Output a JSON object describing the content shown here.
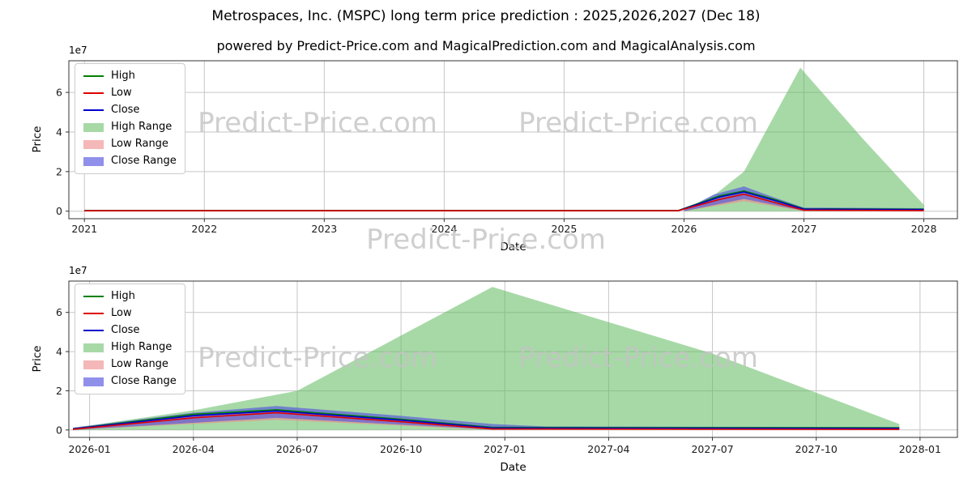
{
  "page": {
    "title": "Metrospaces, Inc. (MSPC) long term price prediction : 2025,2026,2027 (Dec 18)",
    "subtitle": "powered by Predict-Price.com and MagicalPrediction.com and MagicalAnalysis.com",
    "watermark": "Predict-Price.com"
  },
  "colors": {
    "high_line": "#008000",
    "low_line": "#dd0000",
    "close_line": "#0000cc",
    "high_range_fill": "#5fba5f",
    "low_range_fill": "#ee8888",
    "close_range_fill": "#5555e0",
    "grid": "#c6c6c6",
    "watermark_gray": "#c3c3c3"
  },
  "chart_data": [
    {
      "type": "line",
      "title": "",
      "xlabel": "Date",
      "ylabel": "Price",
      "offset_label": "1e7",
      "y_unit_multiplier": 10000000,
      "x_range": [
        2020.87,
        2028.28
      ],
      "y_range": [
        -0.38,
        7.6
      ],
      "x_ticks": [
        {
          "v": 2021,
          "label": "2021"
        },
        {
          "v": 2022,
          "label": "2022"
        },
        {
          "v": 2023,
          "label": "2023"
        },
        {
          "v": 2024,
          "label": "2024"
        },
        {
          "v": 2025,
          "label": "2025"
        },
        {
          "v": 2026,
          "label": "2026"
        },
        {
          "v": 2027,
          "label": "2027"
        },
        {
          "v": 2028,
          "label": "2028"
        }
      ],
      "y_ticks": [
        {
          "v": 0,
          "label": "0"
        },
        {
          "v": 2,
          "label": "2"
        },
        {
          "v": 4,
          "label": "4"
        },
        {
          "v": 6,
          "label": "6"
        }
      ],
      "fills": [
        {
          "name": "High Range",
          "color": "#5fba5f",
          "alpha": 0.55,
          "upper": [
            [
              2026.0,
              0.05
            ],
            [
              2026.25,
              0.8
            ],
            [
              2026.5,
              2.0
            ],
            [
              2026.97,
              7.25
            ],
            [
              2027.5,
              3.6
            ],
            [
              2028.0,
              0.32
            ]
          ],
          "lower": [
            [
              2026.0,
              0.0
            ],
            [
              2028.0,
              0.0
            ]
          ]
        },
        {
          "name": "Low Range",
          "color": "#ee8888",
          "alpha": 0.6,
          "upper": [
            [
              2026.0,
              0.04
            ],
            [
              2026.3,
              0.65
            ],
            [
              2026.5,
              0.9
            ],
            [
              2026.75,
              0.5
            ],
            [
              2027.0,
              0.08
            ],
            [
              2028.0,
              0.06
            ]
          ],
          "lower": [
            [
              2026.0,
              0.0
            ],
            [
              2026.5,
              0.5
            ],
            [
              2027.0,
              0.0
            ],
            [
              2028.0,
              0.0
            ]
          ]
        },
        {
          "name": "Close Range",
          "color": "#5555e0",
          "alpha": 0.65,
          "upper": [
            [
              2026.0,
              0.06
            ],
            [
              2026.25,
              0.85
            ],
            [
              2026.5,
              1.25
            ],
            [
              2026.75,
              0.7
            ],
            [
              2027.0,
              0.18
            ],
            [
              2028.0,
              0.15
            ]
          ],
          "lower": [
            [
              2026.0,
              0.0
            ],
            [
              2026.5,
              0.62
            ],
            [
              2027.0,
              0.02
            ],
            [
              2028.0,
              0.02
            ]
          ]
        }
      ],
      "lines": [
        {
          "name": "High",
          "color": "#008000",
          "points": [
            [
              2021.0,
              0.03
            ],
            [
              2025.95,
              0.03
            ],
            [
              2026.3,
              0.78
            ],
            [
              2026.5,
              1.02
            ],
            [
              2026.75,
              0.6
            ],
            [
              2027.0,
              0.12
            ],
            [
              2028.0,
              0.1
            ]
          ]
        },
        {
          "name": "Close",
          "color": "#0000cc",
          "points": [
            [
              2021.0,
              0.02
            ],
            [
              2025.95,
              0.02
            ],
            [
              2026.3,
              0.72
            ],
            [
              2026.5,
              0.97
            ],
            [
              2026.75,
              0.55
            ],
            [
              2027.0,
              0.1
            ],
            [
              2028.0,
              0.08
            ]
          ]
        },
        {
          "name": "Low",
          "color": "#dd0000",
          "points": [
            [
              2021.0,
              0.02
            ],
            [
              2025.95,
              0.02
            ],
            [
              2026.3,
              0.6
            ],
            [
              2026.5,
              0.86
            ],
            [
              2026.75,
              0.45
            ],
            [
              2027.0,
              0.05
            ],
            [
              2028.0,
              0.03
            ]
          ]
        }
      ],
      "legend": [
        {
          "label": "High",
          "type": "line",
          "color": "#008000",
          "alpha": 1
        },
        {
          "label": "Low",
          "type": "line",
          "color": "#dd0000",
          "alpha": 1
        },
        {
          "label": "Close",
          "type": "line",
          "color": "#0000cc",
          "alpha": 1
        },
        {
          "label": "High Range",
          "type": "patch",
          "color": "#5fba5f",
          "alpha": 0.55
        },
        {
          "label": "Low Range",
          "type": "patch",
          "color": "#ee8888",
          "alpha": 0.6
        },
        {
          "label": "Close Range",
          "type": "patch",
          "color": "#5555e0",
          "alpha": 0.65
        }
      ]
    },
    {
      "type": "line",
      "title": "",
      "xlabel": "Date",
      "ylabel": "Price",
      "offset_label": "1e7",
      "y_unit_multiplier": 10000000,
      "x_range": [
        2025.95,
        2028.09
      ],
      "y_range": [
        -0.38,
        7.6
      ],
      "x_ticks": [
        {
          "v": 2026.0,
          "label": "2026-01"
        },
        {
          "v": 2026.25,
          "label": "2026-04"
        },
        {
          "v": 2026.5,
          "label": "2026-07"
        },
        {
          "v": 2026.75,
          "label": "2026-10"
        },
        {
          "v": 2027.0,
          "label": "2027-01"
        },
        {
          "v": 2027.25,
          "label": "2027-04"
        },
        {
          "v": 2027.5,
          "label": "2027-07"
        },
        {
          "v": 2027.75,
          "label": "2027-10"
        },
        {
          "v": 2028.0,
          "label": "2028-01"
        }
      ],
      "y_ticks": [
        {
          "v": 0,
          "label": "0"
        },
        {
          "v": 2,
          "label": "2"
        },
        {
          "v": 4,
          "label": "4"
        },
        {
          "v": 6,
          "label": "6"
        }
      ],
      "fills": [
        {
          "name": "High Range",
          "color": "#5fba5f",
          "alpha": 0.55,
          "upper": [
            [
              2025.96,
              0.1
            ],
            [
              2026.25,
              1.0
            ],
            [
              2026.5,
              2.0
            ],
            [
              2026.97,
              7.3
            ],
            [
              2027.5,
              3.9
            ],
            [
              2027.95,
              0.3
            ]
          ],
          "lower": [
            [
              2025.96,
              0.0
            ],
            [
              2027.95,
              0.0
            ]
          ]
        },
        {
          "name": "Low Range",
          "color": "#ee8888",
          "alpha": 0.6,
          "upper": [
            [
              2025.96,
              0.06
            ],
            [
              2026.25,
              0.72
            ],
            [
              2026.45,
              0.95
            ],
            [
              2026.75,
              0.5
            ],
            [
              2026.97,
              0.12
            ],
            [
              2027.95,
              0.06
            ]
          ],
          "lower": [
            [
              2025.96,
              0.0
            ],
            [
              2026.45,
              0.52
            ],
            [
              2026.97,
              0.0
            ],
            [
              2027.95,
              0.0
            ]
          ]
        },
        {
          "name": "Close Range",
          "color": "#5555e0",
          "alpha": 0.65,
          "upper": [
            [
              2025.96,
              0.12
            ],
            [
              2026.25,
              0.88
            ],
            [
              2026.45,
              1.22
            ],
            [
              2026.75,
              0.72
            ],
            [
              2026.97,
              0.3
            ],
            [
              2027.1,
              0.18
            ],
            [
              2027.95,
              0.15
            ]
          ],
          "lower": [
            [
              2025.96,
              0.0
            ],
            [
              2026.45,
              0.62
            ],
            [
              2026.97,
              0.02
            ],
            [
              2027.95,
              0.02
            ]
          ]
        }
      ],
      "lines": [
        {
          "name": "High",
          "color": "#008000",
          "points": [
            [
              2025.96,
              0.06
            ],
            [
              2026.25,
              0.8
            ],
            [
              2026.45,
              1.03
            ],
            [
              2026.75,
              0.55
            ],
            [
              2026.97,
              0.13
            ],
            [
              2027.95,
              0.11
            ]
          ]
        },
        {
          "name": "Close",
          "color": "#0000cc",
          "points": [
            [
              2025.96,
              0.05
            ],
            [
              2026.25,
              0.73
            ],
            [
              2026.45,
              0.97
            ],
            [
              2026.75,
              0.5
            ],
            [
              2026.97,
              0.1
            ],
            [
              2027.95,
              0.08
            ]
          ]
        },
        {
          "name": "Low",
          "color": "#dd0000",
          "points": [
            [
              2025.96,
              0.03
            ],
            [
              2026.25,
              0.62
            ],
            [
              2026.45,
              0.88
            ],
            [
              2026.75,
              0.42
            ],
            [
              2026.97,
              0.05
            ],
            [
              2027.95,
              0.03
            ]
          ]
        }
      ],
      "legend": [
        {
          "label": "High",
          "type": "line",
          "color": "#008000",
          "alpha": 1
        },
        {
          "label": "Low",
          "type": "line",
          "color": "#dd0000",
          "alpha": 1
        },
        {
          "label": "Close",
          "type": "line",
          "color": "#0000cc",
          "alpha": 1
        },
        {
          "label": "High Range",
          "type": "patch",
          "color": "#5fba5f",
          "alpha": 0.55
        },
        {
          "label": "Low Range",
          "type": "patch",
          "color": "#ee8888",
          "alpha": 0.6
        },
        {
          "label": "Close Range",
          "type": "patch",
          "color": "#5555e0",
          "alpha": 0.65
        }
      ]
    }
  ]
}
